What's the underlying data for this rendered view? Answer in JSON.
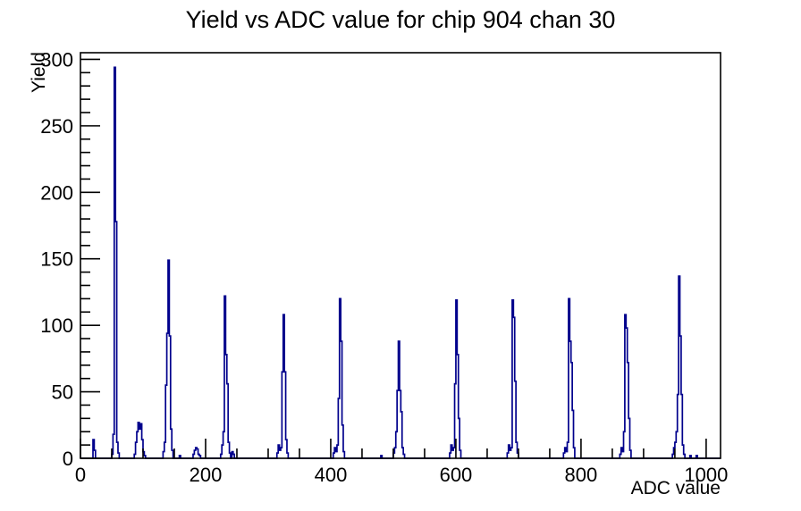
{
  "title": "Yield vs ADC value for chip 904 chan 30",
  "chart_data": {
    "type": "histogram-step",
    "title": "Yield vs ADC value for chip 904 chan 30",
    "xlabel": "ADC value",
    "ylabel": "Yield",
    "xlim": [
      0,
      1023
    ],
    "ylim": [
      0,
      305
    ],
    "x_major_ticks": [
      0,
      200,
      400,
      600,
      800,
      1000
    ],
    "x_minor_step": 50,
    "y_major_ticks": [
      0,
      50,
      100,
      150,
      200,
      250,
      300
    ],
    "y_minor_step": 10,
    "grid": false,
    "legend": false,
    "bin_width": 2,
    "line_color": "#00008c",
    "axis_color": "#000000",
    "background": "#ffffff",
    "peaks_summary": [
      {
        "adc": 54,
        "yield": 294
      },
      {
        "adc": 92,
        "yield": 27
      },
      {
        "adc": 140,
        "yield": 149
      },
      {
        "adc": 184,
        "yield": 8
      },
      {
        "adc": 230,
        "yield": 122
      },
      {
        "adc": 324,
        "yield": 108
      },
      {
        "adc": 414,
        "yield": 120
      },
      {
        "adc": 508,
        "yield": 88
      },
      {
        "adc": 600,
        "yield": 119
      },
      {
        "adc": 690,
        "yield": 119
      },
      {
        "adc": 780,
        "yield": 120
      },
      {
        "adc": 870,
        "yield": 108
      },
      {
        "adc": 956,
        "yield": 137
      }
    ],
    "bins": [
      [
        20,
        14
      ],
      [
        22,
        6
      ],
      [
        50,
        3
      ],
      [
        52,
        18
      ],
      [
        54,
        294
      ],
      [
        56,
        178
      ],
      [
        58,
        12
      ],
      [
        60,
        4
      ],
      [
        86,
        3
      ],
      [
        88,
        12
      ],
      [
        90,
        20
      ],
      [
        92,
        27
      ],
      [
        94,
        22
      ],
      [
        96,
        26
      ],
      [
        98,
        14
      ],
      [
        100,
        5
      ],
      [
        102,
        2
      ],
      [
        132,
        5
      ],
      [
        134,
        12
      ],
      [
        136,
        55
      ],
      [
        138,
        94
      ],
      [
        140,
        149
      ],
      [
        142,
        92
      ],
      [
        144,
        22
      ],
      [
        146,
        6
      ],
      [
        158,
        2
      ],
      [
        180,
        3
      ],
      [
        182,
        6
      ],
      [
        184,
        8
      ],
      [
        186,
        7
      ],
      [
        188,
        3
      ],
      [
        190,
        2
      ],
      [
        224,
        3
      ],
      [
        226,
        10
      ],
      [
        228,
        20
      ],
      [
        230,
        122
      ],
      [
        232,
        78
      ],
      [
        234,
        56
      ],
      [
        236,
        12
      ],
      [
        238,
        4
      ],
      [
        242,
        5
      ],
      [
        244,
        3
      ],
      [
        314,
        4
      ],
      [
        316,
        10
      ],
      [
        318,
        6
      ],
      [
        320,
        8
      ],
      [
        322,
        65
      ],
      [
        324,
        108
      ],
      [
        326,
        65
      ],
      [
        328,
        14
      ],
      [
        330,
        4
      ],
      [
        404,
        4
      ],
      [
        406,
        8
      ],
      [
        408,
        5
      ],
      [
        410,
        10
      ],
      [
        412,
        45
      ],
      [
        414,
        120
      ],
      [
        416,
        88
      ],
      [
        418,
        25
      ],
      [
        420,
        5
      ],
      [
        480,
        2
      ],
      [
        500,
        4
      ],
      [
        502,
        8
      ],
      [
        504,
        20
      ],
      [
        506,
        51
      ],
      [
        508,
        88
      ],
      [
        510,
        51
      ],
      [
        512,
        35
      ],
      [
        514,
        8
      ],
      [
        516,
        3
      ],
      [
        590,
        4
      ],
      [
        592,
        10
      ],
      [
        594,
        6
      ],
      [
        596,
        8
      ],
      [
        598,
        56
      ],
      [
        600,
        119
      ],
      [
        602,
        78
      ],
      [
        604,
        30
      ],
      [
        606,
        6
      ],
      [
        682,
        4
      ],
      [
        684,
        10
      ],
      [
        686,
        6
      ],
      [
        688,
        8
      ],
      [
        690,
        119
      ],
      [
        692,
        106
      ],
      [
        694,
        58
      ],
      [
        696,
        12
      ],
      [
        698,
        4
      ],
      [
        772,
        4
      ],
      [
        774,
        8
      ],
      [
        776,
        5
      ],
      [
        778,
        12
      ],
      [
        780,
        120
      ],
      [
        782,
        88
      ],
      [
        784,
        72
      ],
      [
        786,
        36
      ],
      [
        788,
        8
      ],
      [
        862,
        3
      ],
      [
        864,
        8
      ],
      [
        866,
        5
      ],
      [
        868,
        20
      ],
      [
        870,
        108
      ],
      [
        872,
        98
      ],
      [
        874,
        72
      ],
      [
        876,
        30
      ],
      [
        878,
        6
      ],
      [
        946,
        3
      ],
      [
        948,
        8
      ],
      [
        950,
        12
      ],
      [
        952,
        20
      ],
      [
        954,
        48
      ],
      [
        956,
        137
      ],
      [
        958,
        92
      ],
      [
        960,
        48
      ],
      [
        962,
        10
      ],
      [
        964,
        3
      ],
      [
        974,
        2
      ],
      [
        984,
        2
      ]
    ]
  }
}
